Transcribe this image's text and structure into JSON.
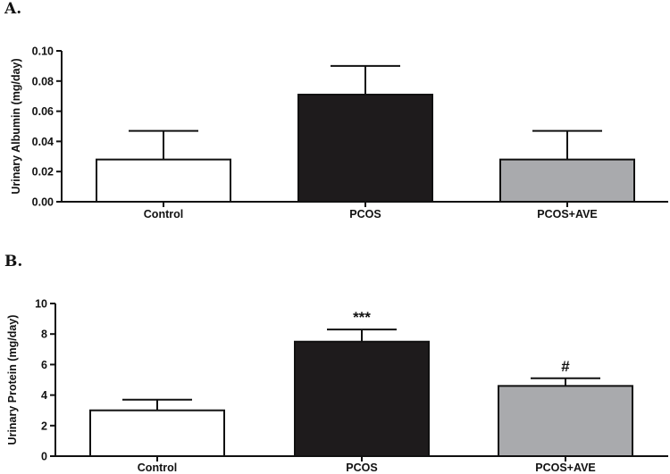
{
  "chart_data": [
    {
      "type": "bar",
      "panel_label": "A.",
      "ylabel": "Urinary Albumin (mg/day)",
      "categories": [
        "Control",
        "PCOS",
        "PCOS+AVE"
      ],
      "values": [
        0.028,
        0.071,
        0.028
      ],
      "errors": [
        0.019,
        0.019,
        0.019
      ],
      "colors": [
        "#ffffff",
        "#1e1b1c",
        "#a9aaad"
      ],
      "annotations": [
        "",
        "",
        ""
      ],
      "ylim": [
        0,
        0.1
      ],
      "yticks": [
        "0.00",
        "0.02",
        "0.04",
        "0.06",
        "0.08",
        "0.10"
      ],
      "ytick_values": [
        0,
        0.02,
        0.04,
        0.06,
        0.08,
        0.1
      ],
      "grid": false
    },
    {
      "type": "bar",
      "panel_label": "B.",
      "ylabel": "Urinary Protein (mg/day)",
      "categories": [
        "Control",
        "PCOS",
        "PCOS+AVE"
      ],
      "values": [
        3.0,
        7.5,
        4.6
      ],
      "errors": [
        0.7,
        0.8,
        0.5
      ],
      "colors": [
        "#ffffff",
        "#1e1b1c",
        "#a9aaad"
      ],
      "annotations": [
        "",
        "***",
        "#"
      ],
      "ylim": [
        0,
        10
      ],
      "yticks": [
        "0",
        "2",
        "4",
        "6",
        "8",
        "10"
      ],
      "ytick_values": [
        0,
        2,
        4,
        6,
        8,
        10
      ],
      "grid": false
    }
  ]
}
